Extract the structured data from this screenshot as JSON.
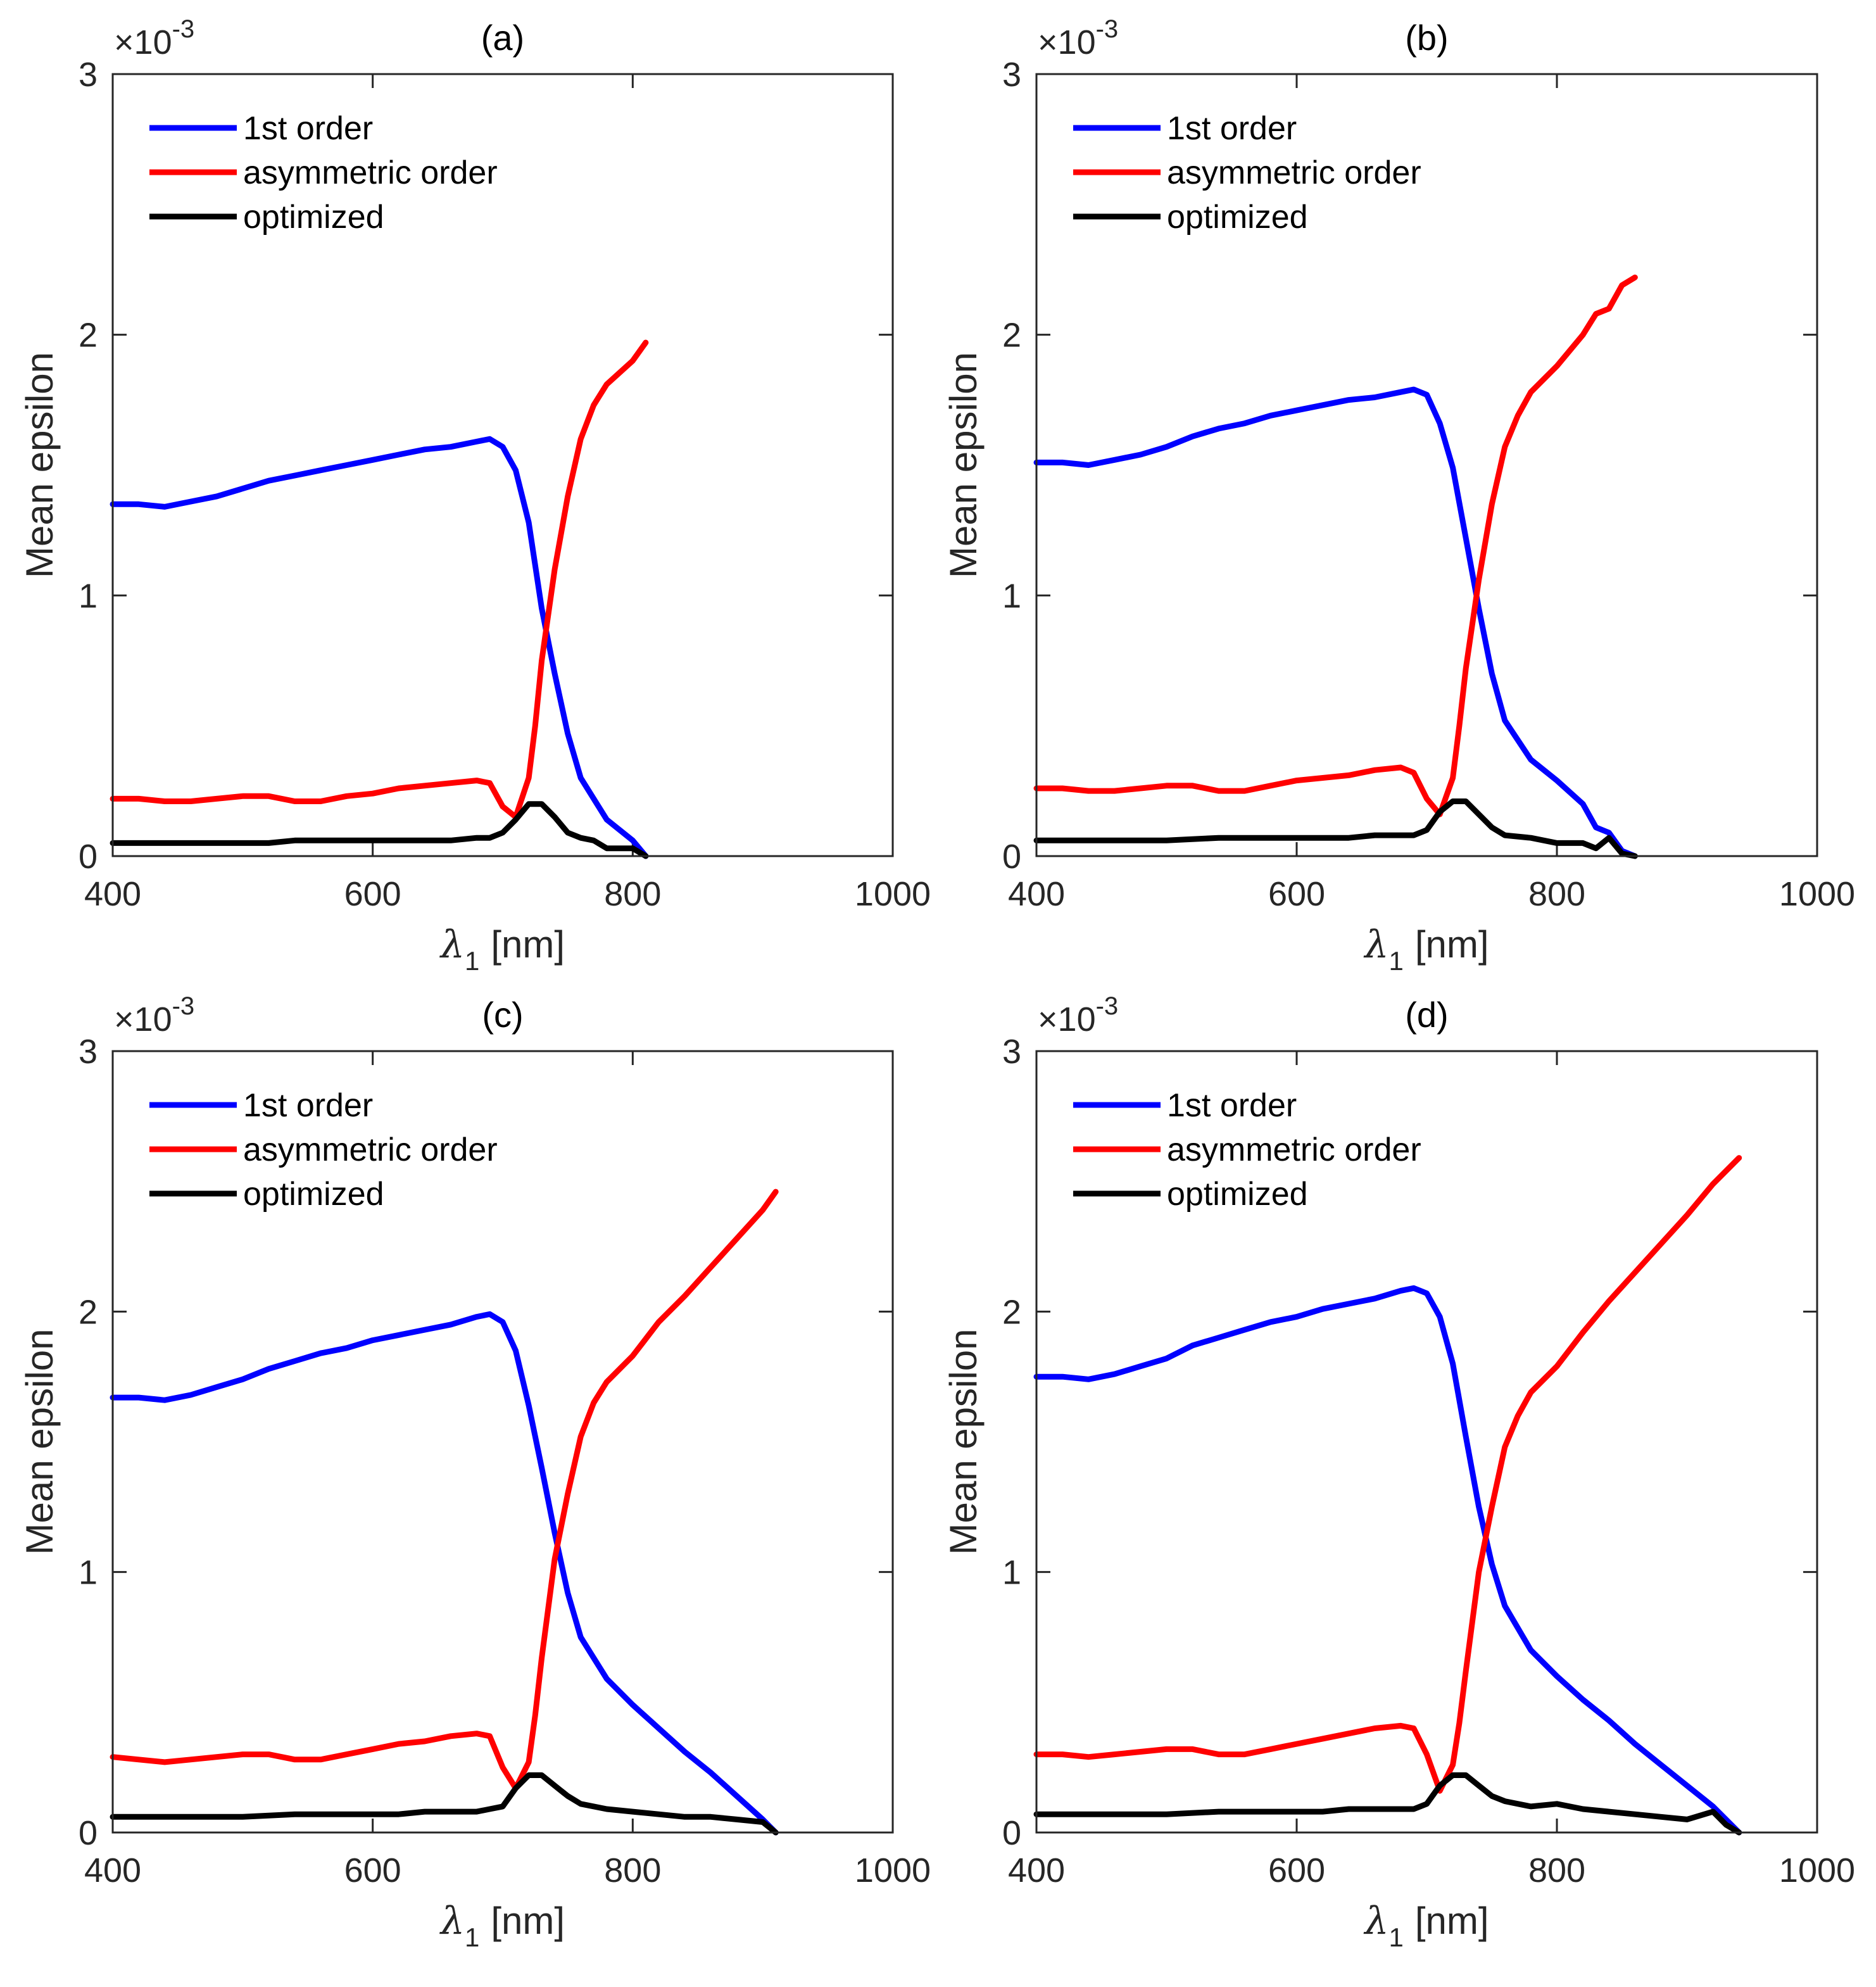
{
  "colors": {
    "first": "#0000ff",
    "asym": "#ff0000",
    "opt": "#000000",
    "axis": "#262626"
  },
  "chart_data": [
    {
      "type": "line",
      "title": "(a)",
      "xlabel": "λ1 [nm]",
      "xlabel_main": "λ",
      "xlabel_sub": "1",
      "xlabel_unit": "[nm]",
      "ylabel": "Mean epsilon",
      "y_exponent_label": "×10",
      "y_exponent_power": "-3",
      "xlim": [
        400,
        1000
      ],
      "ylim": [
        0,
        3
      ],
      "xticks": [
        "400",
        "600",
        "800",
        "1000"
      ],
      "yticks": [
        "0",
        "1",
        "2",
        "3"
      ],
      "legend": [
        "1st order",
        "asymmetric order",
        "optimized"
      ],
      "legend_position": "top-left",
      "series": [
        {
          "name": "1st order",
          "color": "#0000ff",
          "x": [
            400,
            420,
            440,
            460,
            480,
            500,
            520,
            540,
            560,
            580,
            600,
            620,
            640,
            660,
            680,
            690,
            700,
            710,
            720,
            730,
            740,
            750,
            760,
            780,
            800,
            810
          ],
          "y": [
            1.35,
            1.35,
            1.34,
            1.36,
            1.38,
            1.41,
            1.44,
            1.46,
            1.48,
            1.5,
            1.52,
            1.54,
            1.56,
            1.57,
            1.59,
            1.6,
            1.57,
            1.48,
            1.28,
            0.95,
            0.7,
            0.47,
            0.3,
            0.14,
            0.06,
            0.0
          ]
        },
        {
          "name": "asymmetric order",
          "color": "#ff0000",
          "x": [
            400,
            420,
            440,
            460,
            480,
            500,
            520,
            540,
            560,
            580,
            600,
            620,
            640,
            660,
            680,
            690,
            700,
            710,
            720,
            725,
            730,
            740,
            750,
            760,
            770,
            780,
            800,
            810
          ],
          "y": [
            0.22,
            0.22,
            0.21,
            0.21,
            0.22,
            0.23,
            0.23,
            0.21,
            0.21,
            0.23,
            0.24,
            0.26,
            0.27,
            0.28,
            0.29,
            0.28,
            0.19,
            0.15,
            0.3,
            0.5,
            0.75,
            1.1,
            1.38,
            1.6,
            1.73,
            1.81,
            1.9,
            1.97
          ]
        },
        {
          "name": "optimized",
          "color": "#000000",
          "x": [
            400,
            450,
            500,
            520,
            540,
            560,
            580,
            600,
            620,
            640,
            660,
            680,
            690,
            700,
            710,
            720,
            730,
            740,
            750,
            760,
            770,
            780,
            790,
            800,
            810
          ],
          "y": [
            0.05,
            0.05,
            0.05,
            0.05,
            0.06,
            0.06,
            0.06,
            0.06,
            0.06,
            0.06,
            0.06,
            0.07,
            0.07,
            0.09,
            0.14,
            0.2,
            0.2,
            0.15,
            0.09,
            0.07,
            0.06,
            0.03,
            0.03,
            0.03,
            0.0
          ]
        }
      ]
    },
    {
      "type": "line",
      "title": "(b)",
      "xlabel": "λ1 [nm]",
      "xlabel_main": "λ",
      "xlabel_sub": "1",
      "xlabel_unit": "[nm]",
      "ylabel": "Mean epsilon",
      "y_exponent_label": "×10",
      "y_exponent_power": "-3",
      "xlim": [
        400,
        1000
      ],
      "ylim": [
        0,
        3
      ],
      "xticks": [
        "400",
        "600",
        "800",
        "1000"
      ],
      "yticks": [
        "0",
        "1",
        "2",
        "3"
      ],
      "legend": [
        "1st order",
        "asymmetric order",
        "optimized"
      ],
      "legend_position": "top-left",
      "series": [
        {
          "name": "1st order",
          "color": "#0000ff",
          "x": [
            400,
            420,
            440,
            460,
            480,
            500,
            520,
            540,
            560,
            580,
            600,
            620,
            640,
            660,
            680,
            690,
            700,
            710,
            720,
            730,
            740,
            750,
            760,
            780,
            800,
            820,
            830,
            840,
            850,
            860
          ],
          "y": [
            1.51,
            1.51,
            1.5,
            1.52,
            1.54,
            1.57,
            1.61,
            1.64,
            1.66,
            1.69,
            1.71,
            1.73,
            1.75,
            1.76,
            1.78,
            1.79,
            1.77,
            1.66,
            1.49,
            1.22,
            0.95,
            0.7,
            0.52,
            0.37,
            0.29,
            0.2,
            0.11,
            0.09,
            0.02,
            0.0
          ]
        },
        {
          "name": "asymmetric order",
          "color": "#ff0000",
          "x": [
            400,
            420,
            440,
            460,
            480,
            500,
            520,
            540,
            560,
            580,
            600,
            620,
            640,
            660,
            680,
            690,
            700,
            710,
            720,
            725,
            730,
            740,
            750,
            760,
            770,
            780,
            800,
            820,
            830,
            840,
            850,
            860
          ],
          "y": [
            0.26,
            0.26,
            0.25,
            0.25,
            0.26,
            0.27,
            0.27,
            0.25,
            0.25,
            0.27,
            0.29,
            0.3,
            0.31,
            0.33,
            0.34,
            0.32,
            0.22,
            0.16,
            0.3,
            0.5,
            0.72,
            1.06,
            1.35,
            1.57,
            1.69,
            1.78,
            1.88,
            2.0,
            2.08,
            2.1,
            2.19,
            2.22
          ]
        },
        {
          "name": "optimized",
          "color": "#000000",
          "x": [
            400,
            450,
            500,
            540,
            560,
            580,
            600,
            620,
            640,
            660,
            680,
            690,
            700,
            710,
            720,
            730,
            740,
            750,
            760,
            780,
            800,
            820,
            830,
            840,
            850,
            860
          ],
          "y": [
            0.06,
            0.06,
            0.06,
            0.07,
            0.07,
            0.07,
            0.07,
            0.07,
            0.07,
            0.08,
            0.08,
            0.08,
            0.1,
            0.17,
            0.21,
            0.21,
            0.16,
            0.11,
            0.08,
            0.07,
            0.05,
            0.05,
            0.03,
            0.07,
            0.01,
            0.0
          ]
        }
      ]
    },
    {
      "type": "line",
      "title": "(c)",
      "xlabel": "λ1 [nm]",
      "xlabel_main": "λ",
      "xlabel_sub": "1",
      "xlabel_unit": "[nm]",
      "ylabel": "Mean epsilon",
      "y_exponent_label": "×10",
      "y_exponent_power": "-3",
      "xlim": [
        400,
        1000
      ],
      "ylim": [
        0,
        3
      ],
      "xticks": [
        "400",
        "600",
        "800",
        "1000"
      ],
      "yticks": [
        "0",
        "1",
        "2",
        "3"
      ],
      "legend": [
        "1st order",
        "asymmetric order",
        "optimized"
      ],
      "legend_position": "top-left",
      "series": [
        {
          "name": "1st order",
          "color": "#0000ff",
          "x": [
            400,
            420,
            440,
            460,
            480,
            500,
            520,
            540,
            560,
            580,
            600,
            620,
            640,
            660,
            680,
            690,
            700,
            710,
            720,
            730,
            740,
            750,
            760,
            780,
            800,
            820,
            840,
            860,
            880,
            900,
            910
          ],
          "y": [
            1.67,
            1.67,
            1.66,
            1.68,
            1.71,
            1.74,
            1.78,
            1.81,
            1.84,
            1.86,
            1.89,
            1.91,
            1.93,
            1.95,
            1.98,
            1.99,
            1.96,
            1.85,
            1.64,
            1.4,
            1.15,
            0.92,
            0.75,
            0.59,
            0.49,
            0.4,
            0.31,
            0.23,
            0.14,
            0.05,
            0.0
          ]
        },
        {
          "name": "asymmetric order",
          "color": "#ff0000",
          "x": [
            400,
            420,
            440,
            460,
            480,
            500,
            520,
            540,
            560,
            580,
            600,
            620,
            640,
            660,
            680,
            690,
            700,
            710,
            720,
            725,
            730,
            740,
            750,
            760,
            770,
            780,
            800,
            820,
            840,
            860,
            880,
            900,
            910
          ],
          "y": [
            0.29,
            0.28,
            0.27,
            0.28,
            0.29,
            0.3,
            0.3,
            0.28,
            0.28,
            0.3,
            0.32,
            0.34,
            0.35,
            0.37,
            0.38,
            0.37,
            0.25,
            0.17,
            0.27,
            0.45,
            0.67,
            1.05,
            1.3,
            1.52,
            1.65,
            1.73,
            1.83,
            1.96,
            2.06,
            2.17,
            2.28,
            2.39,
            2.46
          ]
        },
        {
          "name": "optimized",
          "color": "#000000",
          "x": [
            400,
            450,
            500,
            540,
            560,
            580,
            600,
            620,
            640,
            660,
            680,
            690,
            700,
            710,
            720,
            730,
            740,
            750,
            760,
            780,
            800,
            820,
            840,
            860,
            880,
            900,
            910
          ],
          "y": [
            0.06,
            0.06,
            0.06,
            0.07,
            0.07,
            0.07,
            0.07,
            0.07,
            0.08,
            0.08,
            0.08,
            0.09,
            0.1,
            0.17,
            0.22,
            0.22,
            0.18,
            0.14,
            0.11,
            0.09,
            0.08,
            0.07,
            0.06,
            0.06,
            0.05,
            0.04,
            0.0
          ]
        }
      ]
    },
    {
      "type": "line",
      "title": "(d)",
      "xlabel": "λ1 [nm]",
      "xlabel_main": "λ",
      "xlabel_sub": "1",
      "xlabel_unit": "[nm]",
      "ylabel": "Mean epsilon",
      "y_exponent_label": "×10",
      "y_exponent_power": "-3",
      "xlim": [
        400,
        1000
      ],
      "ylim": [
        0,
        3
      ],
      "xticks": [
        "400",
        "600",
        "800",
        "1000"
      ],
      "yticks": [
        "0",
        "1",
        "2",
        "3"
      ],
      "legend": [
        "1st order",
        "asymmetric order",
        "optimized"
      ],
      "legend_position": "top-left",
      "series": [
        {
          "name": "1st order",
          "color": "#0000ff",
          "x": [
            400,
            420,
            440,
            460,
            480,
            500,
            520,
            540,
            560,
            580,
            600,
            620,
            640,
            660,
            680,
            690,
            700,
            710,
            720,
            730,
            740,
            750,
            760,
            780,
            800,
            820,
            840,
            860,
            880,
            900,
            920,
            940
          ],
          "y": [
            1.75,
            1.75,
            1.74,
            1.76,
            1.79,
            1.82,
            1.87,
            1.9,
            1.93,
            1.96,
            1.98,
            2.01,
            2.03,
            2.05,
            2.08,
            2.09,
            2.07,
            1.98,
            1.8,
            1.52,
            1.25,
            1.03,
            0.87,
            0.7,
            0.6,
            0.51,
            0.43,
            0.34,
            0.26,
            0.18,
            0.1,
            0.0
          ]
        },
        {
          "name": "asymmetric order",
          "color": "#ff0000",
          "x": [
            400,
            420,
            440,
            460,
            480,
            500,
            520,
            540,
            560,
            580,
            600,
            620,
            640,
            660,
            680,
            690,
            700,
            710,
            720,
            725,
            730,
            740,
            750,
            760,
            770,
            780,
            800,
            820,
            840,
            860,
            880,
            900,
            920,
            940
          ],
          "y": [
            0.3,
            0.3,
            0.29,
            0.3,
            0.31,
            0.32,
            0.32,
            0.3,
            0.3,
            0.32,
            0.34,
            0.36,
            0.38,
            0.4,
            0.41,
            0.4,
            0.3,
            0.16,
            0.26,
            0.42,
            0.62,
            1.0,
            1.25,
            1.48,
            1.6,
            1.69,
            1.79,
            1.92,
            2.04,
            2.15,
            2.26,
            2.37,
            2.49,
            2.59
          ]
        },
        {
          "name": "optimized",
          "color": "#000000",
          "x": [
            400,
            450,
            500,
            540,
            560,
            580,
            600,
            620,
            640,
            660,
            680,
            690,
            700,
            710,
            720,
            730,
            740,
            750,
            760,
            780,
            800,
            820,
            840,
            860,
            880,
            900,
            920,
            930,
            940
          ],
          "y": [
            0.07,
            0.07,
            0.07,
            0.08,
            0.08,
            0.08,
            0.08,
            0.08,
            0.09,
            0.09,
            0.09,
            0.09,
            0.11,
            0.18,
            0.22,
            0.22,
            0.18,
            0.14,
            0.12,
            0.1,
            0.11,
            0.09,
            0.08,
            0.07,
            0.06,
            0.05,
            0.08,
            0.03,
            0.0
          ]
        }
      ]
    }
  ]
}
